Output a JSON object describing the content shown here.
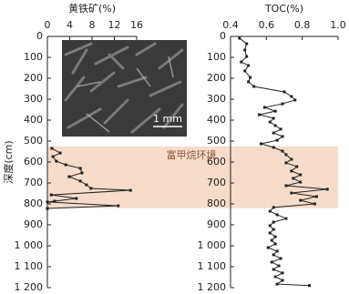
{
  "chart_data": [
    {
      "type": "line",
      "x_label": "黄铁矿(%)",
      "y_label": "深度(cm)",
      "xlim": [
        0,
        16
      ],
      "xticks": [
        0,
        4,
        8,
        12,
        16
      ],
      "ylim": [
        0,
        1200
      ],
      "y_inverted": true,
      "yticks": [
        0,
        100,
        200,
        300,
        400,
        500,
        600,
        700,
        800,
        900,
        {
          "value": 1000,
          "label": "1 000"
        },
        {
          "value": 1100,
          "label": "1 100"
        },
        {
          "value": 1200,
          "label": "1 200"
        }
      ],
      "shaded_region": {
        "from": 525,
        "to": 820,
        "color": "#f7dcc9",
        "label": "富甲烷环境"
      },
      "inset": {
        "scale_label": "1 mm"
      },
      "series": [
        {
          "color": "#222222",
          "x": [
            0.8,
            2.3,
            1,
            1.6,
            3.3,
            5.9,
            6.2,
            3.9,
            5.9,
            7,
            7.8,
            14.9,
            0.7,
            5.2,
            1.3,
            0,
            12.7,
            0
          ],
          "y": [
            535,
            557,
            574,
            596,
            613,
            630,
            652,
            670,
            691,
            709,
            726,
            735,
            757,
            774,
            787,
            791,
            809,
            822
          ]
        }
      ]
    },
    {
      "type": "line",
      "x_label": "TOC(%)",
      "xlim": [
        0.4,
        1.0
      ],
      "xticks": [
        0.4,
        0.6,
        0.8,
        {
          "value": 1.0,
          "label": "1.0"
        }
      ],
      "ylim": [
        0,
        1200
      ],
      "y_inverted": true,
      "yticks": [
        0,
        100,
        200,
        300,
        400,
        500,
        600,
        700,
        800,
        900,
        {
          "value": 1000,
          "label": "1 000"
        },
        {
          "value": 1100,
          "label": "1 100"
        },
        {
          "value": 1200,
          "label": "1 200"
        }
      ],
      "series": [
        {
          "color": "#222222",
          "x": [
            0.45,
            0.49,
            0.48,
            0.49,
            0.46,
            0.5,
            0.48,
            0.51,
            0.5,
            0.53,
            0.7,
            0.74,
            0.76,
            0.69,
            0.59,
            0.65,
            0.56,
            0.64,
            0.62,
            0.65,
            0.68,
            0.64,
            0.69,
            0.66,
            0.57,
            0.64,
            0.69,
            0.71,
            0.74,
            0.71,
            0.77,
            0.74,
            0.79,
            0.75,
            0.79,
            0.71,
            0.94,
            0.74,
            0.88,
            0.79,
            0.87,
            0.64,
            0.62,
            0.66,
            0.71,
            0.64,
            0.62,
            0.64,
            0.62,
            0.65,
            0.63,
            0.65,
            0.61,
            0.66,
            0.64,
            0.68,
            0.63,
            0.67,
            0.64,
            0.69,
            0.65,
            0.69,
            0.66,
            0.84
          ],
          "y": [
            9,
            35,
            65,
            96,
            122,
            139,
            165,
            196,
            217,
            239,
            265,
            287,
            304,
            322,
            339,
            357,
            374,
            391,
            409,
            426,
            443,
            461,
            478,
            496,
            513,
            530,
            548,
            565,
            587,
            604,
            622,
            643,
            661,
            678,
            696,
            713,
            730,
            748,
            765,
            783,
            800,
            817,
            835,
            852,
            870,
            887,
            904,
            922,
            939,
            957,
            974,
            991,
            1009,
            1026,
            1043,
            1061,
            1078,
            1096,
            1113,
            1130,
            1148,
            1165,
            1183,
            1190
          ]
        }
      ]
    }
  ]
}
